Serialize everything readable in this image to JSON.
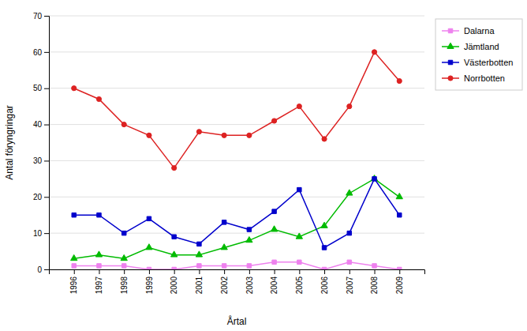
{
  "chart_data": {
    "type": "line",
    "xlabel": "Årtal",
    "ylabel": "Antal föryngringar",
    "x": [
      1996,
      1997,
      1998,
      1999,
      2000,
      2001,
      2002,
      2003,
      2004,
      2005,
      2006,
      2007,
      2008,
      2009
    ],
    "xlim": [
      1995,
      2010
    ],
    "xticks": [
      1996,
      1997,
      1998,
      1999,
      2000,
      2001,
      2002,
      2003,
      2004,
      2005,
      2006,
      2007,
      2008,
      2009
    ],
    "ylim": [
      0,
      70
    ],
    "yticks": [
      0,
      10,
      20,
      30,
      40,
      50,
      60,
      70
    ],
    "grid": true,
    "legend": "right",
    "series": [
      {
        "name": "Dalarna",
        "color": "#ee82ee",
        "marker": "square",
        "values": [
          1,
          1,
          1,
          0,
          0,
          1,
          1,
          1,
          2,
          2,
          0,
          2,
          1,
          0
        ]
      },
      {
        "name": "Jämtland",
        "color": "#00bb00",
        "marker": "triangle",
        "values": [
          3,
          4,
          3,
          6,
          4,
          4,
          6,
          8,
          11,
          9,
          12,
          21,
          25,
          20
        ]
      },
      {
        "name": "Västerbotten",
        "color": "#0000cc",
        "marker": "square",
        "values": [
          15,
          15,
          10,
          14,
          9,
          7,
          13,
          11,
          16,
          22,
          6,
          10,
          25,
          15
        ]
      },
      {
        "name": "Norrbotten",
        "color": "#dd2222",
        "marker": "circle",
        "values": [
          50,
          47,
          40,
          37,
          28,
          38,
          37,
          37,
          41,
          45,
          36,
          45,
          60,
          52
        ]
      }
    ]
  }
}
